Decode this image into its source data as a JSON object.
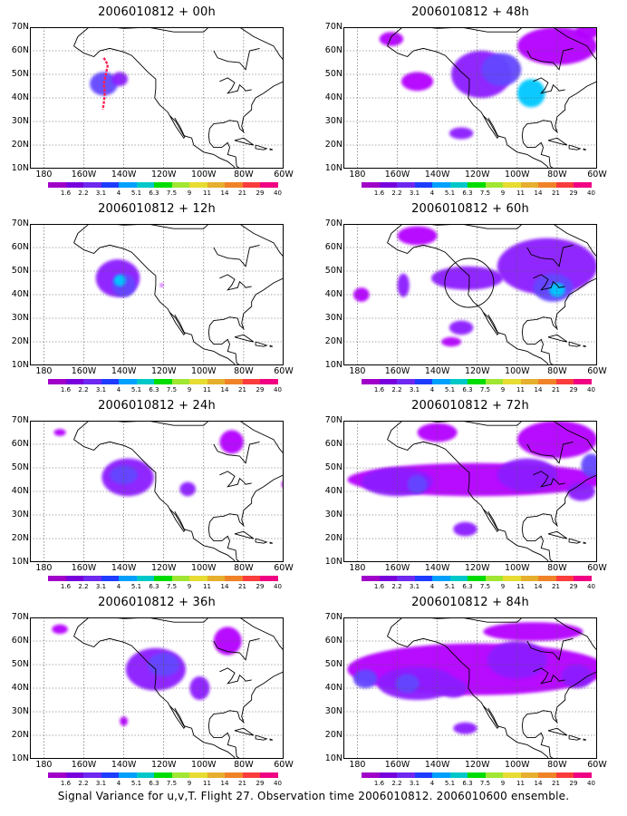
{
  "panels": [
    {
      "title": "2006010812 + 00h",
      "blobs": [
        {
          "lon": -150,
          "lat": 46,
          "lon_span": 14,
          "lat_span": 10,
          "level": 3
        },
        {
          "lon": -142,
          "lat": 48,
          "lon_span": 8,
          "lat_span": 6,
          "level": 2
        }
      ],
      "track": true,
      "circle": false
    },
    {
      "title": "2006010812 + 48h",
      "blobs": [
        {
          "lon": -163,
          "lat": 65,
          "lon_span": 12,
          "lat_span": 6,
          "level": 1
        },
        {
          "lon": -118,
          "lat": 50,
          "lon_span": 30,
          "lat_span": 20,
          "level": 2
        },
        {
          "lon": -108,
          "lat": 52,
          "lon_span": 20,
          "lat_span": 14,
          "level": 3
        },
        {
          "lon": -93,
          "lat": 42,
          "lon_span": 14,
          "lat_span": 12,
          "level": 4
        },
        {
          "lon": -150,
          "lat": 47,
          "lon_span": 16,
          "lat_span": 8,
          "level": 1
        },
        {
          "lon": -128,
          "lat": 25,
          "lon_span": 12,
          "lat_span": 5,
          "level": 2
        },
        {
          "lon": -80,
          "lat": 62,
          "lon_span": 40,
          "lat_span": 16,
          "level": 1
        },
        {
          "lon": -65,
          "lat": 68,
          "lon_span": 12,
          "lat_span": 6,
          "level": 1
        }
      ],
      "track": false,
      "circle": false
    },
    {
      "title": "2006010812 + 12h",
      "blobs": [
        {
          "lon": -143,
          "lat": 47,
          "lon_span": 22,
          "lat_span": 16,
          "level": 2
        },
        {
          "lon": -140,
          "lat": 44,
          "lon_span": 12,
          "lat_span": 10,
          "level": 3
        },
        {
          "lon": -142,
          "lat": 46,
          "lon_span": 6,
          "lat_span": 5,
          "level": 4
        },
        {
          "lon": -121,
          "lat": 44,
          "lon_span": 1.5,
          "lat_span": 1.5,
          "level": 1
        }
      ],
      "track": false,
      "circle": false
    },
    {
      "title": "2006010812 + 60h",
      "blobs": [
        {
          "lon": -150,
          "lat": 65,
          "lon_span": 20,
          "lat_span": 8,
          "level": 1
        },
        {
          "lon": -157,
          "lat": 44,
          "lon_span": 6,
          "lat_span": 10,
          "level": 2
        },
        {
          "lon": -178,
          "lat": 40,
          "lon_span": 8,
          "lat_span": 6,
          "level": 1
        },
        {
          "lon": -125,
          "lat": 47,
          "lon_span": 36,
          "lat_span": 10,
          "level": 2
        },
        {
          "lon": -85,
          "lat": 52,
          "lon_span": 50,
          "lat_span": 24,
          "level": 2
        },
        {
          "lon": -82,
          "lat": 43,
          "lon_span": 20,
          "lat_span": 12,
          "level": 3
        },
        {
          "lon": -80,
          "lat": 42,
          "lon_span": 8,
          "lat_span": 6,
          "level": 4
        },
        {
          "lon": -128,
          "lat": 26,
          "lon_span": 12,
          "lat_span": 6,
          "level": 2
        },
        {
          "lon": -133,
          "lat": 20,
          "lon_span": 10,
          "lat_span": 4,
          "level": 1
        }
      ],
      "track": false,
      "circle": true
    },
    {
      "title": "2006010812 + 24h",
      "blobs": [
        {
          "lon": -138,
          "lat": 46,
          "lon_span": 26,
          "lat_span": 16,
          "level": 2
        },
        {
          "lon": -140,
          "lat": 47,
          "lon_span": 14,
          "lat_span": 8,
          "level": 3
        },
        {
          "lon": -108,
          "lat": 41,
          "lon_span": 8,
          "lat_span": 6,
          "level": 2
        },
        {
          "lon": -86,
          "lat": 61,
          "lon_span": 12,
          "lat_span": 10,
          "level": 1
        },
        {
          "lon": -172,
          "lat": 65,
          "lon_span": 6,
          "lat_span": 3,
          "level": 1
        },
        {
          "lon": -60,
          "lat": 43,
          "lon_span": 2,
          "lat_span": 3,
          "level": 1
        }
      ],
      "track": false,
      "circle": false
    },
    {
      "title": "2006010812 + 72h",
      "blobs": [
        {
          "lon": -120,
          "lat": 45,
          "lon_span": 130,
          "lat_span": 14,
          "level": 1
        },
        {
          "lon": -160,
          "lat": 44,
          "lon_span": 36,
          "lat_span": 12,
          "level": 2
        },
        {
          "lon": -150,
          "lat": 43,
          "lon_span": 10,
          "lat_span": 8,
          "level": 3
        },
        {
          "lon": -95,
          "lat": 47,
          "lon_span": 30,
          "lat_span": 14,
          "level": 2
        },
        {
          "lon": -63,
          "lat": 51,
          "lon_span": 10,
          "lat_span": 10,
          "level": 3
        },
        {
          "lon": -140,
          "lat": 65,
          "lon_span": 20,
          "lat_span": 8,
          "level": 1
        },
        {
          "lon": -80,
          "lat": 62,
          "lon_span": 40,
          "lat_span": 16,
          "level": 1
        },
        {
          "lon": -68,
          "lat": 40,
          "lon_span": 14,
          "lat_span": 8,
          "level": 2
        },
        {
          "lon": -126,
          "lat": 24,
          "lon_span": 12,
          "lat_span": 6,
          "level": 2
        }
      ],
      "track": false,
      "circle": false
    },
    {
      "title": "2006010812 + 36h",
      "blobs": [
        {
          "lon": -124,
          "lat": 48,
          "lon_span": 30,
          "lat_span": 18,
          "level": 2
        },
        {
          "lon": -120,
          "lat": 50,
          "lon_span": 16,
          "lat_span": 10,
          "level": 3
        },
        {
          "lon": -102,
          "lat": 40,
          "lon_span": 10,
          "lat_span": 10,
          "level": 2
        },
        {
          "lon": -88,
          "lat": 60,
          "lon_span": 14,
          "lat_span": 12,
          "level": 1
        },
        {
          "lon": -172,
          "lat": 65,
          "lon_span": 8,
          "lat_span": 4,
          "level": 1
        },
        {
          "lon": -140,
          "lat": 26,
          "lon_span": 4,
          "lat_span": 4,
          "level": 1
        }
      ],
      "track": false,
      "circle": false
    },
    {
      "title": "2006010812 + 84h",
      "blobs": [
        {
          "lon": -120,
          "lat": 48,
          "lon_span": 130,
          "lat_span": 22,
          "level": 1
        },
        {
          "lon": -150,
          "lat": 42,
          "lon_span": 40,
          "lat_span": 14,
          "level": 2
        },
        {
          "lon": -155,
          "lat": 42,
          "lon_span": 12,
          "lat_span": 8,
          "level": 3
        },
        {
          "lon": -176,
          "lat": 44,
          "lon_span": 12,
          "lat_span": 8,
          "level": 3
        },
        {
          "lon": -132,
          "lat": 40,
          "lon_span": 14,
          "lat_span": 8,
          "level": 2
        },
        {
          "lon": -100,
          "lat": 52,
          "lon_span": 30,
          "lat_span": 16,
          "level": 2
        },
        {
          "lon": -92,
          "lat": 64,
          "lon_span": 50,
          "lat_span": 8,
          "level": 1
        },
        {
          "lon": -70,
          "lat": 45,
          "lon_span": 16,
          "lat_span": 10,
          "level": 2
        },
        {
          "lon": -126,
          "lat": 23,
          "lon_span": 12,
          "lat_span": 5,
          "level": 2
        }
      ],
      "track": false,
      "circle": false
    }
  ],
  "axes": {
    "lat_labels": [
      "70N",
      "60N",
      "50N",
      "40N",
      "30N",
      "20N",
      "10N"
    ],
    "lon_labels": [
      "180",
      "160W",
      "140W",
      "120W",
      "100W",
      "80W",
      "60W"
    ],
    "lat_range": [
      10,
      70
    ],
    "lon_range": [
      -187,
      -60
    ]
  },
  "colorbar": {
    "labels": [
      "1.6",
      "2.2",
      "3.1",
      "4",
      "5.1",
      "6.3",
      "7.5",
      "9",
      "11",
      "14",
      "21",
      "29",
      "40"
    ],
    "colors": [
      "#a000c8",
      "#7800dc",
      "#6e28f0",
      "#1e3cff",
      "#00a0ff",
      "#00c8c8",
      "#00dc00",
      "#a0e632",
      "#e6dc32",
      "#e6af2d",
      "#f08228",
      "#fa3c3c",
      "#f00082"
    ]
  },
  "caption": "Signal Variance for u,v,T. Flight 27. Observation time 2006010812. 2006010600 ensemble."
}
